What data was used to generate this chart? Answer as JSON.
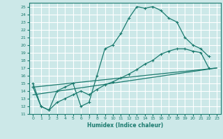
{
  "bg_color": "#cce8e8",
  "grid_color": "#ffffff",
  "line_color": "#1a7a6e",
  "xlabel": "Humidex (Indice chaleur)",
  "xlim": [
    -0.5,
    23.5
  ],
  "ylim": [
    11,
    25.5
  ],
  "yticks": [
    11,
    12,
    13,
    14,
    15,
    16,
    17,
    18,
    19,
    20,
    21,
    22,
    23,
    24,
    25
  ],
  "xticks": [
    0,
    1,
    2,
    3,
    4,
    5,
    6,
    7,
    8,
    9,
    10,
    11,
    12,
    13,
    14,
    15,
    16,
    17,
    18,
    19,
    20,
    21,
    22,
    23
  ],
  "line1_x": [
    0,
    1,
    2,
    3,
    4,
    5,
    6,
    7,
    8,
    9,
    10,
    11,
    12,
    13,
    14,
    15,
    16,
    17,
    18,
    19,
    20,
    21,
    22
  ],
  "line1_y": [
    15,
    12,
    11.5,
    14,
    14.5,
    15,
    12,
    12.5,
    16,
    19.5,
    20,
    21.5,
    23.5,
    25,
    24.8,
    25,
    24.5,
    23.5,
    23,
    21,
    20,
    19.5,
    18.5
  ],
  "line2_x": [
    0,
    23
  ],
  "line2_y": [
    14.5,
    17.0
  ],
  "line3_x": [
    0,
    1,
    2,
    3,
    4,
    5,
    6,
    7,
    8,
    9,
    10,
    11,
    12,
    13,
    14,
    15,
    16,
    17,
    18,
    19,
    20,
    21,
    22
  ],
  "line3_y": [
    14.5,
    12,
    11.5,
    12.5,
    13,
    13.5,
    14,
    13.5,
    14.2,
    14.8,
    15.2,
    15.7,
    16.2,
    16.8,
    17.5,
    18.0,
    18.8,
    19.2,
    19.5,
    19.5,
    19.2,
    19.0,
    17.0
  ],
  "line4_x": [
    0,
    23
  ],
  "line4_y": [
    13.5,
    17.0
  ]
}
